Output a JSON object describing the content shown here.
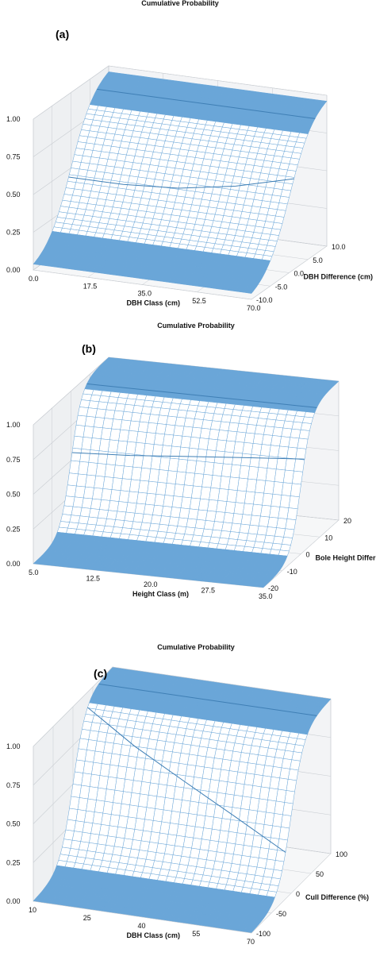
{
  "chart_data": [
    {
      "type": "surface3d",
      "panel_label": "(a)",
      "title": "Cumulative Probability",
      "xlabel": "DBH Class (cm)",
      "ylabel": "DBH Difference (cm)",
      "zlabel": "",
      "x_ticks": [
        "0.0",
        "17.5",
        "35.0",
        "52.5",
        "70.0"
      ],
      "y_ticks": [
        "-10.0",
        "-5.0",
        "0.0",
        "5.0",
        "10.0"
      ],
      "z_ticks": [
        "0.00",
        "0.25",
        "0.50",
        "0.75",
        "1.00"
      ],
      "xlim": [
        0,
        70
      ],
      "ylim": [
        -10,
        10
      ],
      "zlim": [
        0,
        1
      ],
      "surface": {
        "description_values": "CDF of the difference; step centered at difference 0",
        "steepness": 0.08,
        "shift_by_class": [
          0,
          0,
          0,
          0,
          0
        ],
        "mid_line_z": [
          0.45,
          0.45,
          0.47,
          0.52,
          0.6
        ],
        "upper_line_z": [
          0.9,
          0.9,
          0.9,
          0.9,
          0.9
        ]
      },
      "color": "#6aa6d8"
    },
    {
      "type": "surface3d",
      "panel_label": "(b)",
      "title": "Cumulative Probability",
      "xlabel": "Height Class (m)",
      "ylabel": "Bole Height Difference (m)",
      "zlabel": "",
      "x_ticks": [
        "5.0",
        "12.5",
        "20.0",
        "27.5",
        "35.0"
      ],
      "y_ticks": [
        "-20",
        "-10",
        "0",
        "10",
        "20"
      ],
      "z_ticks": [
        "0.00",
        "0.25",
        "0.50",
        "0.75",
        "1.00"
      ],
      "xlim": [
        5,
        35
      ],
      "ylim": [
        -20,
        20
      ],
      "zlim": [
        0,
        1
      ],
      "surface": {
        "description_values": "CDF of the difference; smooth sigmoid centered near 0",
        "steepness": 0.35,
        "shift_by_class": [
          0,
          0,
          0,
          0,
          0
        ],
        "mid_line_z": [
          0.55,
          0.57,
          0.6,
          0.63,
          0.66
        ],
        "upper_line_z": [
          0.95,
          0.95,
          0.95,
          0.95,
          0.95
        ]
      },
      "color": "#6aa6d8"
    },
    {
      "type": "surface3d",
      "panel_label": "(c)",
      "title": "Cumulative Probability",
      "xlabel": "DBH Class (cm)",
      "ylabel": "Cull Difference (%)",
      "zlabel": "",
      "x_ticks": [
        "10",
        "25",
        "40",
        "55",
        "70"
      ],
      "y_ticks": [
        "-100",
        "-50",
        "0",
        "50",
        "100"
      ],
      "z_ticks": [
        "0.00",
        "0.25",
        "0.50",
        "0.75",
        "1.00"
      ],
      "xlim": [
        10,
        70
      ],
      "ylim": [
        -100,
        100
      ],
      "zlim": [
        0,
        1
      ],
      "surface": {
        "description_values": "CDF of the difference; sigmoid centered near 0, with a bulge at mid values",
        "steepness": 0.06,
        "shift_by_class": [
          0,
          0,
          0,
          0,
          0
        ],
        "mid_line_z": [
          0.9,
          0.75,
          0.6,
          0.45,
          0.3
        ],
        "upper_line_z": [
          0.98,
          0.98,
          0.98,
          0.98,
          0.98
        ]
      },
      "color": "#6aa6d8"
    }
  ]
}
